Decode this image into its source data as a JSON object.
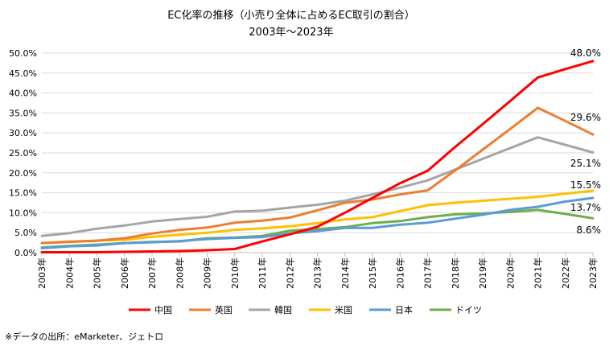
{
  "chart_data": {
    "type": "line",
    "title": "EC化率の推移（小売り全体に占めるEC取引の割合）",
    "subtitle": "2003年～2023年",
    "x": [
      "2003年",
      "2004年",
      "2005年",
      "2006年",
      "2007年",
      "2008年",
      "2009年",
      "2010年",
      "2011年",
      "2012年",
      "2013年",
      "2014年",
      "2015年",
      "2016年",
      "2017年",
      "2018年",
      "2019年",
      "2020年",
      "2021年",
      "2022年",
      "2023年"
    ],
    "ylim": [
      0,
      50
    ],
    "yticks": [
      "0.0%",
      "5.0%",
      "10.0%",
      "15.0%",
      "20.0%",
      "25.0%",
      "30.0%",
      "35.0%",
      "40.0%",
      "45.0%",
      "50.0%"
    ],
    "grid": true,
    "legend_position": "bottom",
    "series": [
      {
        "name": "中国",
        "color": "#ff0000",
        "values": [
          0.1,
          0.1,
          0.1,
          0.2,
          0.3,
          0.4,
          0.6,
          0.9,
          2.8,
          4.6,
          6.5,
          10.0,
          13.7,
          17.4,
          20.5,
          26.5,
          32.2,
          38.0,
          43.9,
          46.0,
          48.0
        ],
        "end_label": "48.0%"
      },
      {
        "name": "英国",
        "color": "#ed7d31",
        "values": [
          2.4,
          2.7,
          3.0,
          3.6,
          4.8,
          5.7,
          6.3,
          7.5,
          8.0,
          8.8,
          10.6,
          12.5,
          13.3,
          14.6,
          15.6,
          20.6,
          25.8,
          31.0,
          36.3,
          33.0,
          29.6
        ],
        "end_label": "29.6%"
      },
      {
        "name": "韓国",
        "color": "#a5a5a5",
        "values": [
          4.2,
          4.9,
          6.0,
          6.8,
          7.8,
          8.4,
          9.0,
          10.3,
          10.5,
          11.3,
          12.0,
          13.0,
          14.6,
          16.3,
          18.1,
          20.8,
          23.5,
          26.2,
          28.9,
          27.0,
          25.1
        ],
        "end_label": "25.1%"
      },
      {
        "name": "米国",
        "color": "#ffc000",
        "values": [
          2.4,
          2.8,
          3.0,
          3.2,
          4.0,
          4.5,
          5.0,
          5.7,
          6.1,
          6.6,
          7.4,
          8.3,
          8.9,
          10.4,
          11.9,
          12.5,
          13.0,
          13.5,
          14.0,
          14.8,
          15.5
        ],
        "end_label": "15.5%"
      },
      {
        "name": "日本",
        "color": "#5b9bd5",
        "values": [
          1.1,
          1.6,
          1.8,
          2.4,
          2.6,
          2.9,
          3.4,
          3.7,
          3.9,
          4.8,
          5.4,
          6.2,
          6.2,
          7.0,
          7.5,
          8.5,
          9.5,
          10.7,
          11.5,
          12.8,
          13.7
        ],
        "end_label": "13.7%"
      },
      {
        "name": "ドイツ",
        "color": "#70ad47",
        "values": [
          1.3,
          1.7,
          2.0,
          2.4,
          2.7,
          2.8,
          3.6,
          3.8,
          4.2,
          5.5,
          5.9,
          6.4,
          7.4,
          7.9,
          8.9,
          9.6,
          9.8,
          10.2,
          10.7,
          9.7,
          8.6
        ],
        "end_label": "8.6%"
      }
    ]
  },
  "source_note": "※データの出所：eMarketer、ジェトロ"
}
